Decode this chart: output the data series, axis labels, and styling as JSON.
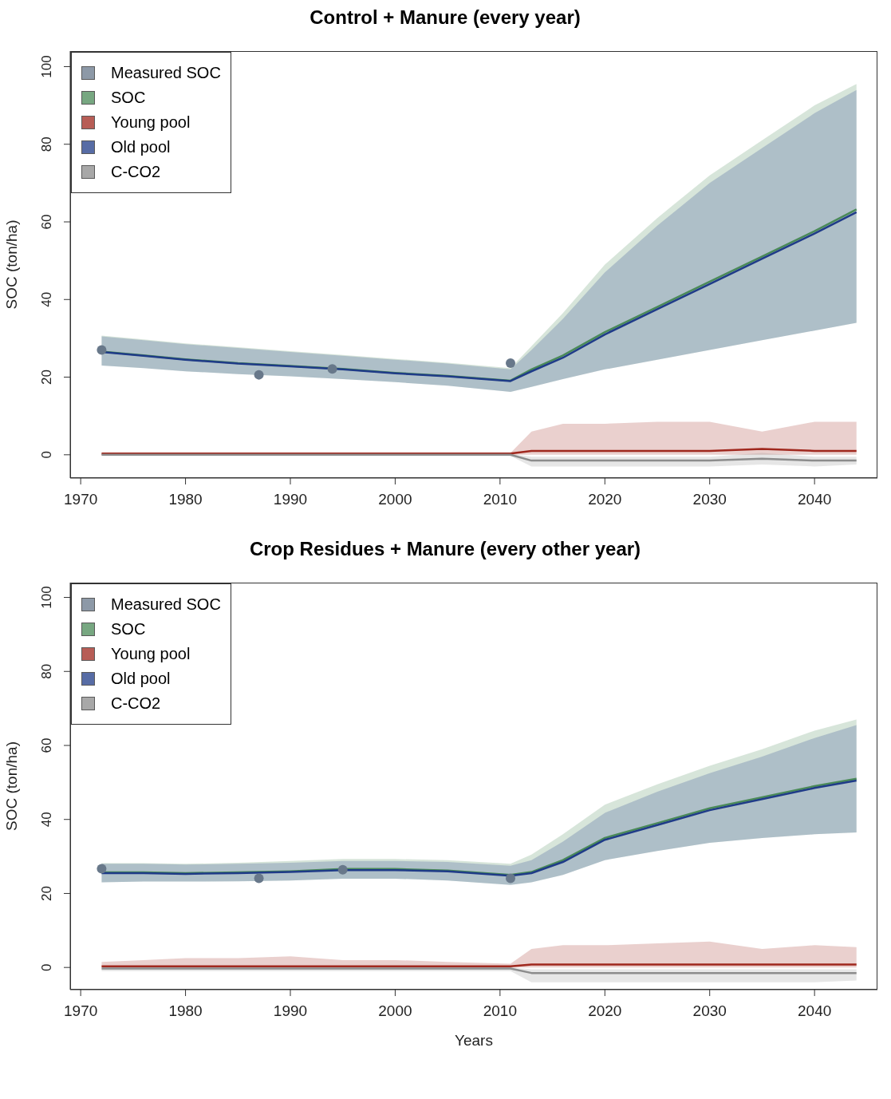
{
  "chart_data": [
    {
      "type": "line",
      "title": "Control + Manure (every year)",
      "ylabel": "SOC (ton/ha)",
      "xlim": [
        1969,
        2046
      ],
      "ylim": [
        -6,
        104
      ],
      "xticks": [
        1970,
        1980,
        1990,
        2000,
        2010,
        2020,
        2030,
        2040
      ],
      "yticks": [
        0,
        20,
        40,
        60,
        80,
        100
      ],
      "grid": false,
      "legend": "top left",
      "x": [
        1972,
        1976,
        1980,
        1985,
        1990,
        1995,
        2000,
        2005,
        2011,
        2013,
        2016,
        2020,
        2025,
        2030,
        2035,
        2040,
        2044
      ],
      "series": [
        {
          "name": "Measured SOC",
          "type": "scatter",
          "marker": "circle",
          "color": "#68788a",
          "x": [
            1972,
            1987,
            1994,
            2011
          ],
          "values": [
            27,
            20.6,
            22.1,
            23.6
          ]
        },
        {
          "name": "SOC",
          "color": "#4a8a58",
          "values": [
            26.6,
            25.6,
            24.6,
            23.6,
            22.9,
            22.1,
            21.1,
            20.3,
            19.1,
            22,
            25.6,
            31.6,
            38.1,
            44.6,
            51.1,
            57.6,
            63.2
          ],
          "lower": [
            23,
            22.3,
            21.5,
            20.8,
            20.2,
            19.5,
            18.7,
            17.8,
            16.2,
            17.5,
            19.5,
            22,
            24.5,
            27,
            29.5,
            32,
            34
          ],
          "upper": [
            30.7,
            29.7,
            28.7,
            27.7,
            26.7,
            25.7,
            24.7,
            23.7,
            22.3,
            28,
            36.5,
            49,
            61,
            72,
            81,
            90,
            95.5
          ]
        },
        {
          "name": "Young pool",
          "color": "#a0281e",
          "values": [
            0.3,
            0.3,
            0.3,
            0.3,
            0.3,
            0.3,
            0.3,
            0.3,
            0.3,
            1,
            1,
            1,
            1,
            1,
            1.5,
            1,
            1
          ],
          "lower": [
            0,
            0,
            0,
            0,
            0,
            0,
            0,
            0,
            0,
            0,
            0,
            0,
            0,
            0,
            0,
            0,
            0
          ],
          "upper": [
            0.5,
            0.5,
            0.5,
            0.5,
            0.5,
            0.5,
            0.5,
            0.5,
            0.5,
            6,
            8,
            8,
            8.5,
            8.5,
            6,
            8.5,
            8.5
          ]
        },
        {
          "name": "Old pool",
          "color": "#1f3b88",
          "values": [
            26.5,
            25.5,
            24.5,
            23.5,
            22.8,
            22,
            21,
            20.2,
            19,
            21.5,
            25,
            31,
            37.5,
            44,
            50.5,
            57,
            62.5
          ],
          "lower": [
            23,
            22.3,
            21.5,
            20.8,
            20.2,
            19.5,
            18.7,
            17.8,
            16.2,
            17.5,
            19.5,
            22,
            24.5,
            27,
            29.5,
            32,
            34
          ],
          "upper": [
            30.5,
            29.5,
            28.5,
            27.5,
            26.5,
            25.5,
            24.5,
            23.5,
            22,
            27,
            35,
            47,
            59,
            70,
            79,
            88,
            94
          ]
        },
        {
          "name": "C-CO2",
          "color": "#8c8c8c",
          "values": [
            0,
            0,
            0,
            0,
            0,
            0,
            0,
            0,
            0,
            -1.5,
            -1.5,
            -1.5,
            -1.5,
            -1.5,
            -1,
            -1.5,
            -1.5
          ],
          "lower": [
            -0.3,
            -0.3,
            -0.3,
            -0.3,
            -0.3,
            -0.3,
            -0.3,
            -0.3,
            -0.3,
            -3,
            -3,
            -3,
            -3,
            -3,
            -2.5,
            -3,
            -2.5
          ],
          "upper": [
            0.2,
            0.2,
            0.2,
            0.2,
            0.2,
            0.2,
            0.2,
            0.2,
            0.2,
            -0.5,
            -0.5,
            -0.5,
            -0.5,
            -0.5,
            0.5,
            -0.5,
            -0.5
          ]
        }
      ]
    },
    {
      "type": "line",
      "title": "Crop Residues + Manure (every other year)",
      "xlabel": "Years",
      "ylabel": "SOC (ton/ha)",
      "xlim": [
        1969,
        2046
      ],
      "ylim": [
        -6,
        104
      ],
      "xticks": [
        1970,
        1980,
        1990,
        2000,
        2010,
        2020,
        2030,
        2040
      ],
      "yticks": [
        0,
        20,
        40,
        60,
        80,
        100
      ],
      "grid": false,
      "legend": "top left",
      "x": [
        1972,
        1976,
        1980,
        1985,
        1990,
        1995,
        2000,
        2005,
        2011,
        2013,
        2016,
        2020,
        2025,
        2030,
        2035,
        2040,
        2044
      ],
      "series": [
        {
          "name": "Measured SOC",
          "type": "scatter",
          "marker": "circle",
          "color": "#68788a",
          "x": [
            1972,
            1987,
            1995,
            2011
          ],
          "values": [
            26.7,
            24.1,
            26.4,
            24.1
          ]
        },
        {
          "name": "SOC",
          "color": "#4a8a58",
          "values": [
            25.7,
            25.7,
            25.5,
            25.7,
            26,
            26.6,
            26.6,
            26.2,
            25,
            25.8,
            29,
            35,
            39,
            43,
            46,
            49,
            51
          ],
          "lower": [
            23,
            23.2,
            23.2,
            23.3,
            23.5,
            24,
            24,
            23.5,
            22.3,
            23,
            25,
            29,
            31.5,
            33.7,
            35,
            36,
            36.5
          ],
          "upper": [
            28.2,
            28.2,
            28,
            28.3,
            28.8,
            29.3,
            29.3,
            29,
            28,
            30.5,
            36,
            44,
            49.5,
            54.5,
            59,
            64,
            67
          ]
        },
        {
          "name": "Young pool",
          "color": "#a0281e",
          "values": [
            0.3,
            0.3,
            0.3,
            0.3,
            0.3,
            0.3,
            0.3,
            0.3,
            0.3,
            0.8,
            0.8,
            0.8,
            0.8,
            0.8,
            0.8,
            0.8,
            0.8
          ],
          "lower": [
            0,
            0,
            0,
            0,
            0,
            0,
            0,
            0,
            0,
            0,
            0,
            0,
            0,
            0,
            0,
            0,
            0
          ],
          "upper": [
            1.5,
            2,
            2.5,
            2.5,
            3,
            2,
            2,
            1.5,
            1,
            5,
            6,
            6,
            6.5,
            7,
            5,
            6,
            5.5
          ]
        },
        {
          "name": "Old pool",
          "color": "#1f3b88",
          "values": [
            25.5,
            25.5,
            25.3,
            25.5,
            25.8,
            26.3,
            26.3,
            26,
            24.8,
            25.5,
            28.5,
            34.5,
            38.5,
            42.5,
            45.5,
            48.5,
            50.5
          ],
          "lower": [
            23,
            23.2,
            23.2,
            23.3,
            23.5,
            24,
            24,
            23.5,
            22.3,
            23,
            25,
            29,
            31.5,
            33.7,
            35,
            36,
            36.5
          ],
          "upper": [
            28,
            28,
            27.8,
            28,
            28.3,
            28.8,
            28.8,
            28.5,
            27.5,
            29,
            34,
            41.8,
            47.5,
            52.5,
            57,
            62,
            65.5
          ]
        },
        {
          "name": "C-CO2",
          "color": "#8c8c8c",
          "values": [
            -0.3,
            -0.3,
            -0.3,
            -0.3,
            -0.3,
            -0.3,
            -0.3,
            -0.3,
            -0.3,
            -1.5,
            -1.5,
            -1.5,
            -1.5,
            -1.5,
            -1.5,
            -1.5,
            -1.5
          ],
          "lower": [
            -1,
            -1,
            -1,
            -1,
            -1,
            -1,
            -1,
            -1,
            -1,
            -4,
            -4,
            -4,
            -4,
            -4,
            -4,
            -4,
            -3.5
          ],
          "upper": [
            0,
            0,
            0,
            0,
            0,
            0,
            0,
            0,
            0,
            -0.5,
            -0.5,
            -0.5,
            -0.5,
            -0.5,
            -0.5,
            -0.5,
            -0.5
          ]
        }
      ]
    }
  ]
}
